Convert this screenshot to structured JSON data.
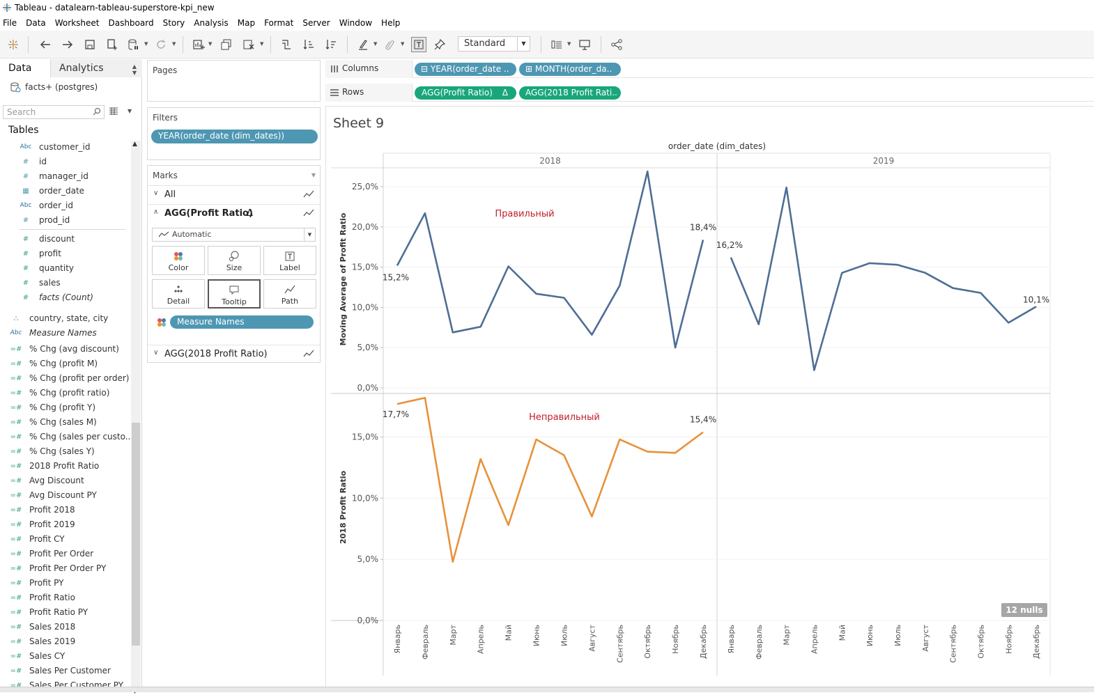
{
  "window": {
    "title": "Tableau - datalearn-tableau-superstore-kpi_new"
  },
  "menu": [
    "File",
    "Data",
    "Worksheet",
    "Dashboard",
    "Story",
    "Analysis",
    "Map",
    "Format",
    "Server",
    "Window",
    "Help"
  ],
  "toolbar": {
    "fit_select": "Standard"
  },
  "data_pane": {
    "tab_data": "Data",
    "tab_analytics": "Analytics",
    "datasource": "facts+ (postgres)",
    "search_placeholder": "Search",
    "tables_heading": "Tables",
    "dimensions": [
      {
        "icon": "Abc",
        "name": "customer_id"
      },
      {
        "icon": "#",
        "name": "id"
      },
      {
        "icon": "#",
        "name": "manager_id"
      },
      {
        "icon": "cal",
        "name": "order_date"
      },
      {
        "icon": "Abc",
        "name": "order_id"
      },
      {
        "icon": "#",
        "name": "prod_id"
      }
    ],
    "measures": [
      {
        "icon": "#",
        "name": "discount"
      },
      {
        "icon": "#",
        "name": "profit"
      },
      {
        "icon": "#",
        "name": "quantity"
      },
      {
        "icon": "#",
        "name": "sales"
      },
      {
        "icon": "#",
        "name": "facts (Count)"
      }
    ],
    "other_dims": [
      {
        "icon": "geo",
        "name": "country, state, city"
      },
      {
        "icon": "Abc",
        "name": "Measure Names"
      }
    ],
    "calc_fields": [
      "% Chg (avg discount)",
      "% Chg (profit M)",
      "% Chg (profit per order)",
      "% Chg (profit ratio)",
      "% Chg (profit Y)",
      "% Chg (sales M)",
      "% Chg (sales per custo...",
      "% Chg (sales Y)",
      "2018 Profit Ratio",
      "Avg Discount",
      "Avg Discount PY",
      "Profit 2018",
      "Profit 2019",
      "Profit CY",
      "Profit Per Order",
      "Profit Per Order PY",
      "Profit PY",
      "Profit Ratio",
      "Profit Ratio PY",
      "Sales 2018",
      "Sales 2019",
      "Sales CY",
      "Sales Per Customer",
      "Sales Per Customer PY"
    ]
  },
  "cards": {
    "pages": "Pages",
    "filters": "Filters",
    "filter_pill": "YEAR(order_date (dim_dates))",
    "marks": "Marks",
    "marks_all": "All",
    "marks_profit": "AGG(Profit Ratio)",
    "delta": "Δ",
    "mark_type": "Automatic",
    "btn_color": "Color",
    "btn_size": "Size",
    "btn_label": "Label",
    "btn_detail": "Detail",
    "btn_tooltip": "Tooltip",
    "btn_path": "Path",
    "measure_names_pill": "Measure Names",
    "marks_2018": "AGG(2018 Profit Ratio)"
  },
  "shelves": {
    "columns_label": "Columns",
    "rows_label": "Rows",
    "col_pill_1": "YEAR(order_date ..",
    "col_pill_2": "MONTH(order_da..",
    "row_pill_1": "AGG(Profit Ratio)",
    "row_pill_1_delta": "Δ",
    "row_pill_2": "AGG(2018 Profit Rati.."
  },
  "sheet": {
    "title": "Sheet 9"
  },
  "chart_data": {
    "type": "line",
    "header": "order_date (dim_dates)",
    "years": [
      "2018",
      "2019"
    ],
    "months": [
      "Январь",
      "Февраль",
      "Март",
      "Апрель",
      "Май",
      "Июнь",
      "Июль",
      "Август",
      "Сентябрь",
      "Октябрь",
      "Ноябрь",
      "Декабрь"
    ],
    "panels": [
      {
        "ylabel": "Moving Average of Profit Ratio",
        "ylim": [
          0,
          27
        ],
        "ticks": [
          0,
          5,
          10,
          15,
          20,
          25
        ],
        "tick_labels": [
          "0,0%",
          "5,0%",
          "10,0%",
          "15,0%",
          "20,0%",
          "25,0%"
        ],
        "color": "#4e6e94",
        "annotation": "Правильный",
        "annotation_color": "#c0202a",
        "series": {
          "2018": [
            15.2,
            21.7,
            6.9,
            7.6,
            15.1,
            11.7,
            11.2,
            6.6,
            12.7,
            26.9,
            5.0,
            18.4
          ],
          "2019": [
            16.2,
            7.9,
            24.9,
            2.2,
            14.3,
            15.5,
            15.3,
            14.3,
            12.4,
            11.8,
            8.1,
            10.1
          ]
        },
        "labels": [
          {
            "year": "2018",
            "month": 0,
            "text": "15,2%"
          },
          {
            "year": "2018",
            "month": 11,
            "text": "18,4%"
          },
          {
            "year": "2019",
            "month": 0,
            "text": "16,2%"
          },
          {
            "year": "2019",
            "month": 11,
            "text": "10,1%"
          }
        ]
      },
      {
        "ylabel": "2018 Profit Ratio",
        "ylim": [
          0,
          18.5
        ],
        "ticks": [
          0,
          5,
          10,
          15
        ],
        "tick_labels": [
          "0,0%",
          "5,0%",
          "10,0%",
          "15,0%"
        ],
        "color": "#e8913a",
        "annotation": "Неправильный",
        "annotation_color": "#c0202a",
        "series": {
          "2018": [
            17.7,
            18.2,
            4.8,
            13.2,
            7.8,
            14.8,
            13.5,
            8.5,
            14.8,
            13.8,
            13.7,
            15.4
          ]
        },
        "labels": [
          {
            "year": "2018",
            "month": 0,
            "text": "17,7%"
          },
          {
            "year": "2018",
            "month": 11,
            "text": "15,4%"
          }
        ]
      }
    ],
    "nulls_badge": "12 nulls"
  }
}
